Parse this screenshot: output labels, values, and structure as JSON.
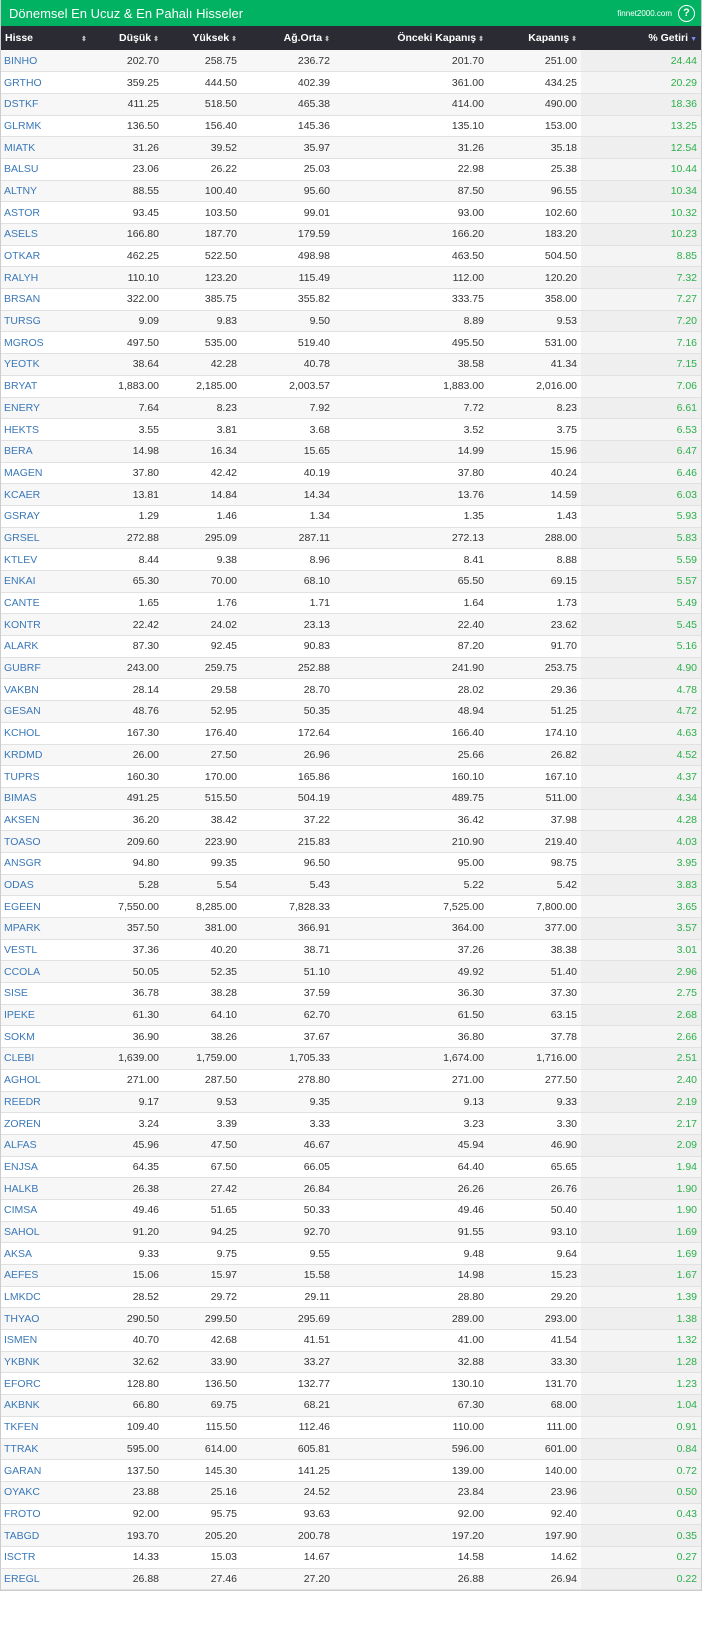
{
  "header": {
    "title": "Dönemsel En Ucuz & En Pahalı Hisseler",
    "brand": "finnet2000.com",
    "help_icon": "?"
  },
  "colors": {
    "header_bg": "#00b261",
    "table_head_bg": "#2b2b33",
    "ticker": "#3a78b8",
    "return": "#2bb04a"
  },
  "columns": [
    "Hisse",
    "Düşük",
    "Yüksek",
    "Ağ.Orta",
    "Önceki Kapanış",
    "Kapanış",
    "% Getiri"
  ],
  "sorted_column": "% Getiri",
  "rows": [
    [
      "BINHO",
      "202.70",
      "258.75",
      "236.72",
      "201.70",
      "251.00",
      "24.44"
    ],
    [
      "GRTHO",
      "359.25",
      "444.50",
      "402.39",
      "361.00",
      "434.25",
      "20.29"
    ],
    [
      "DSTKF",
      "411.25",
      "518.50",
      "465.38",
      "414.00",
      "490.00",
      "18.36"
    ],
    [
      "GLRMK",
      "136.50",
      "156.40",
      "145.36",
      "135.10",
      "153.00",
      "13.25"
    ],
    [
      "MIATK",
      "31.26",
      "39.52",
      "35.97",
      "31.26",
      "35.18",
      "12.54"
    ],
    [
      "BALSU",
      "23.06",
      "26.22",
      "25.03",
      "22.98",
      "25.38",
      "10.44"
    ],
    [
      "ALTNY",
      "88.55",
      "100.40",
      "95.60",
      "87.50",
      "96.55",
      "10.34"
    ],
    [
      "ASTOR",
      "93.45",
      "103.50",
      "99.01",
      "93.00",
      "102.60",
      "10.32"
    ],
    [
      "ASELS",
      "166.80",
      "187.70",
      "179.59",
      "166.20",
      "183.20",
      "10.23"
    ],
    [
      "OTKAR",
      "462.25",
      "522.50",
      "498.98",
      "463.50",
      "504.50",
      "8.85"
    ],
    [
      "RALYH",
      "110.10",
      "123.20",
      "115.49",
      "112.00",
      "120.20",
      "7.32"
    ],
    [
      "BRSAN",
      "322.00",
      "385.75",
      "355.82",
      "333.75",
      "358.00",
      "7.27"
    ],
    [
      "TURSG",
      "9.09",
      "9.83",
      "9.50",
      "8.89",
      "9.53",
      "7.20"
    ],
    [
      "MGROS",
      "497.50",
      "535.00",
      "519.40",
      "495.50",
      "531.00",
      "7.16"
    ],
    [
      "YEOTK",
      "38.64",
      "42.28",
      "40.78",
      "38.58",
      "41.34",
      "7.15"
    ],
    [
      "BRYAT",
      "1,883.00",
      "2,185.00",
      "2,003.57",
      "1,883.00",
      "2,016.00",
      "7.06"
    ],
    [
      "ENERY",
      "7.64",
      "8.23",
      "7.92",
      "7.72",
      "8.23",
      "6.61"
    ],
    [
      "HEKTS",
      "3.55",
      "3.81",
      "3.68",
      "3.52",
      "3.75",
      "6.53"
    ],
    [
      "BERA",
      "14.98",
      "16.34",
      "15.65",
      "14.99",
      "15.96",
      "6.47"
    ],
    [
      "MAGEN",
      "37.80",
      "42.42",
      "40.19",
      "37.80",
      "40.24",
      "6.46"
    ],
    [
      "KCAER",
      "13.81",
      "14.84",
      "14.34",
      "13.76",
      "14.59",
      "6.03"
    ],
    [
      "GSRAY",
      "1.29",
      "1.46",
      "1.34",
      "1.35",
      "1.43",
      "5.93"
    ],
    [
      "GRSEL",
      "272.88",
      "295.09",
      "287.11",
      "272.13",
      "288.00",
      "5.83"
    ],
    [
      "KTLEV",
      "8.44",
      "9.38",
      "8.96",
      "8.41",
      "8.88",
      "5.59"
    ],
    [
      "ENKAI",
      "65.30",
      "70.00",
      "68.10",
      "65.50",
      "69.15",
      "5.57"
    ],
    [
      "CANTE",
      "1.65",
      "1.76",
      "1.71",
      "1.64",
      "1.73",
      "5.49"
    ],
    [
      "KONTR",
      "22.42",
      "24.02",
      "23.13",
      "22.40",
      "23.62",
      "5.45"
    ],
    [
      "ALARK",
      "87.30",
      "92.45",
      "90.83",
      "87.20",
      "91.70",
      "5.16"
    ],
    [
      "GUBRF",
      "243.00",
      "259.75",
      "252.88",
      "241.90",
      "253.75",
      "4.90"
    ],
    [
      "VAKBN",
      "28.14",
      "29.58",
      "28.70",
      "28.02",
      "29.36",
      "4.78"
    ],
    [
      "GESAN",
      "48.76",
      "52.95",
      "50.35",
      "48.94",
      "51.25",
      "4.72"
    ],
    [
      "KCHOL",
      "167.30",
      "176.40",
      "172.64",
      "166.40",
      "174.10",
      "4.63"
    ],
    [
      "KRDMD",
      "26.00",
      "27.50",
      "26.96",
      "25.66",
      "26.82",
      "4.52"
    ],
    [
      "TUPRS",
      "160.30",
      "170.00",
      "165.86",
      "160.10",
      "167.10",
      "4.37"
    ],
    [
      "BIMAS",
      "491.25",
      "515.50",
      "504.19",
      "489.75",
      "511.00",
      "4.34"
    ],
    [
      "AKSEN",
      "36.20",
      "38.42",
      "37.22",
      "36.42",
      "37.98",
      "4.28"
    ],
    [
      "TOASO",
      "209.60",
      "223.90",
      "215.83",
      "210.90",
      "219.40",
      "4.03"
    ],
    [
      "ANSGR",
      "94.80",
      "99.35",
      "96.50",
      "95.00",
      "98.75",
      "3.95"
    ],
    [
      "ODAS",
      "5.28",
      "5.54",
      "5.43",
      "5.22",
      "5.42",
      "3.83"
    ],
    [
      "EGEEN",
      "7,550.00",
      "8,285.00",
      "7,828.33",
      "7,525.00",
      "7,800.00",
      "3.65"
    ],
    [
      "MPARK",
      "357.50",
      "381.00",
      "366.91",
      "364.00",
      "377.00",
      "3.57"
    ],
    [
      "VESTL",
      "37.36",
      "40.20",
      "38.71",
      "37.26",
      "38.38",
      "3.01"
    ],
    [
      "CCOLA",
      "50.05",
      "52.35",
      "51.10",
      "49.92",
      "51.40",
      "2.96"
    ],
    [
      "SISE",
      "36.78",
      "38.28",
      "37.59",
      "36.30",
      "37.30",
      "2.75"
    ],
    [
      "IPEKE",
      "61.30",
      "64.10",
      "62.70",
      "61.50",
      "63.15",
      "2.68"
    ],
    [
      "SOKM",
      "36.90",
      "38.26",
      "37.67",
      "36.80",
      "37.78",
      "2.66"
    ],
    [
      "CLEBI",
      "1,639.00",
      "1,759.00",
      "1,705.33",
      "1,674.00",
      "1,716.00",
      "2.51"
    ],
    [
      "AGHOL",
      "271.00",
      "287.50",
      "278.80",
      "271.00",
      "277.50",
      "2.40"
    ],
    [
      "REEDR",
      "9.17",
      "9.53",
      "9.35",
      "9.13",
      "9.33",
      "2.19"
    ],
    [
      "ZOREN",
      "3.24",
      "3.39",
      "3.33",
      "3.23",
      "3.30",
      "2.17"
    ],
    [
      "ALFAS",
      "45.96",
      "47.50",
      "46.67",
      "45.94",
      "46.90",
      "2.09"
    ],
    [
      "ENJSA",
      "64.35",
      "67.50",
      "66.05",
      "64.40",
      "65.65",
      "1.94"
    ],
    [
      "HALKB",
      "26.38",
      "27.42",
      "26.84",
      "26.26",
      "26.76",
      "1.90"
    ],
    [
      "CIMSA",
      "49.46",
      "51.65",
      "50.33",
      "49.46",
      "50.40",
      "1.90"
    ],
    [
      "SAHOL",
      "91.20",
      "94.25",
      "92.70",
      "91.55",
      "93.10",
      "1.69"
    ],
    [
      "AKSA",
      "9.33",
      "9.75",
      "9.55",
      "9.48",
      "9.64",
      "1.69"
    ],
    [
      "AEFES",
      "15.06",
      "15.97",
      "15.58",
      "14.98",
      "15.23",
      "1.67"
    ],
    [
      "LMKDC",
      "28.52",
      "29.72",
      "29.11",
      "28.80",
      "29.20",
      "1.39"
    ],
    [
      "THYAO",
      "290.50",
      "299.50",
      "295.69",
      "289.00",
      "293.00",
      "1.38"
    ],
    [
      "ISMEN",
      "40.70",
      "42.68",
      "41.51",
      "41.00",
      "41.54",
      "1.32"
    ],
    [
      "YKBNK",
      "32.62",
      "33.90",
      "33.27",
      "32.88",
      "33.30",
      "1.28"
    ],
    [
      "EFORC",
      "128.80",
      "136.50",
      "132.77",
      "130.10",
      "131.70",
      "1.23"
    ],
    [
      "AKBNK",
      "66.80",
      "69.75",
      "68.21",
      "67.30",
      "68.00",
      "1.04"
    ],
    [
      "TKFEN",
      "109.40",
      "115.50",
      "112.46",
      "110.00",
      "111.00",
      "0.91"
    ],
    [
      "TTRAK",
      "595.00",
      "614.00",
      "605.81",
      "596.00",
      "601.00",
      "0.84"
    ],
    [
      "GARAN",
      "137.50",
      "145.30",
      "141.25",
      "139.00",
      "140.00",
      "0.72"
    ],
    [
      "OYAKC",
      "23.88",
      "25.16",
      "24.52",
      "23.84",
      "23.96",
      "0.50"
    ],
    [
      "FROTO",
      "92.00",
      "95.75",
      "93.63",
      "92.00",
      "92.40",
      "0.43"
    ],
    [
      "TABGD",
      "193.70",
      "205.20",
      "200.78",
      "197.20",
      "197.90",
      "0.35"
    ],
    [
      "ISCTR",
      "14.33",
      "15.03",
      "14.67",
      "14.58",
      "14.62",
      "0.27"
    ],
    [
      "EREGL",
      "26.88",
      "27.46",
      "27.20",
      "26.88",
      "26.94",
      "0.22"
    ]
  ]
}
